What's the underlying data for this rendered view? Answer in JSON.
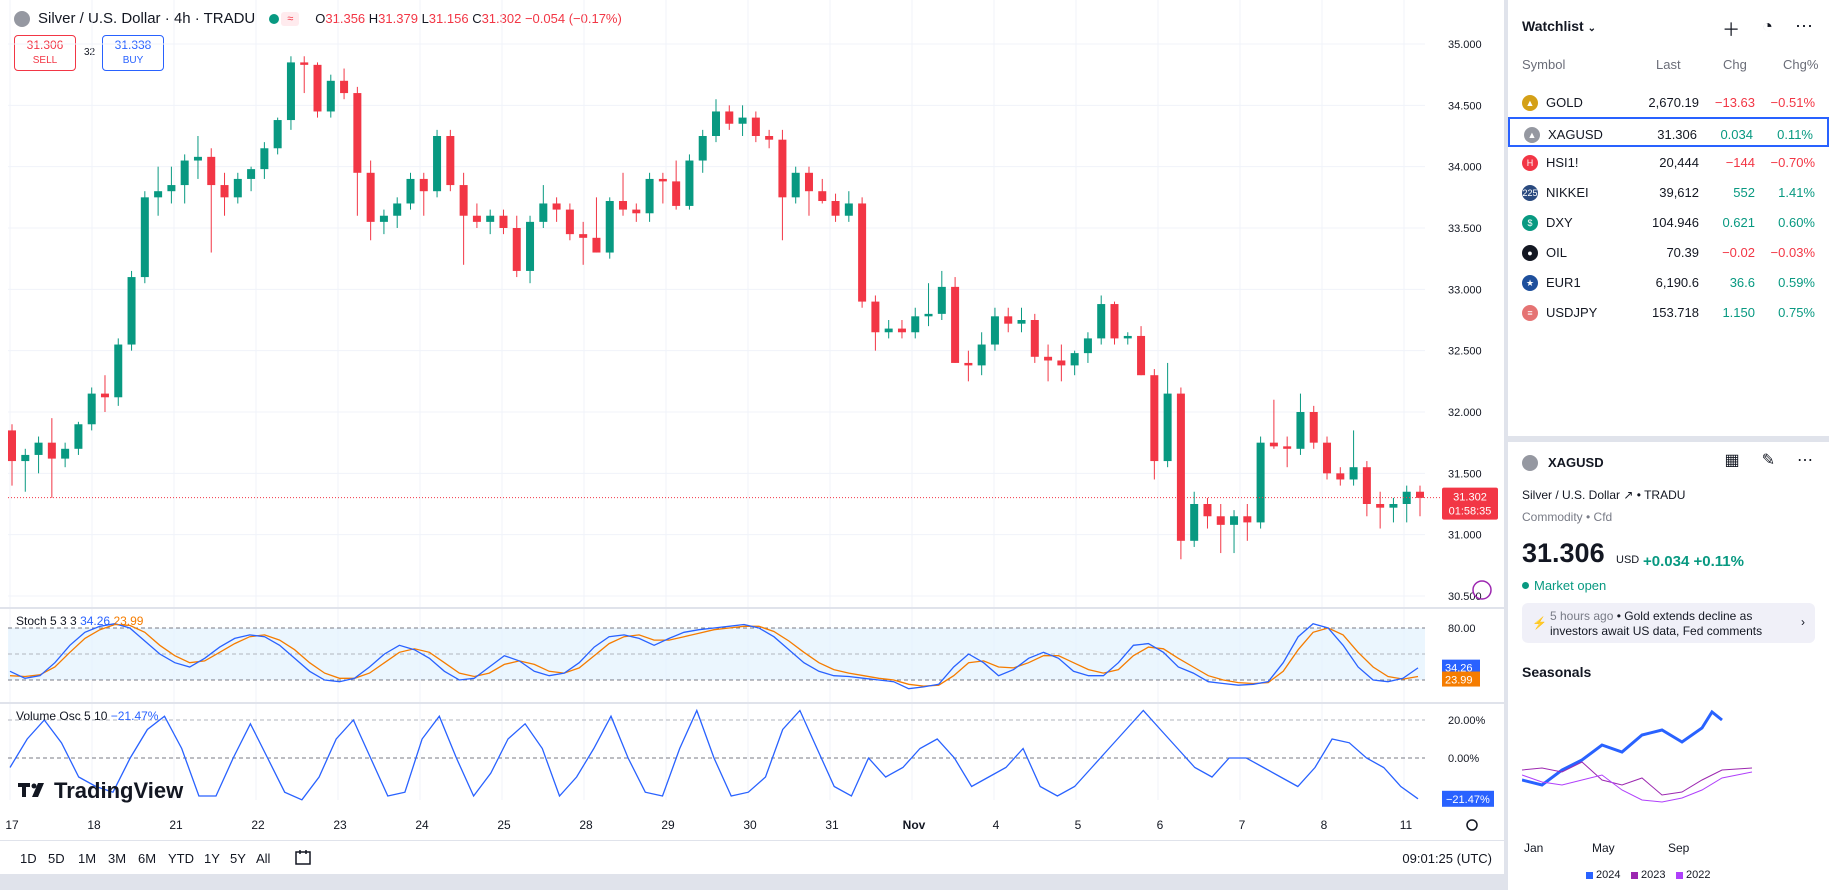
{
  "header": {
    "title": "Silver / U.S. Dollar · 4h · TRADU",
    "ohlc": {
      "o_label": "O",
      "o": "31.356",
      "h_label": "H",
      "h": "31.379",
      "l_label": "L",
      "l": "31.156",
      "c_label": "C",
      "c": "31.302",
      "chg": "−0.054 (−0.17%)"
    },
    "approx_glyph": "≈"
  },
  "trade": {
    "sell_price": "31.306",
    "sell_label": "SELL",
    "spread": "32",
    "buy_price": "31.338",
    "buy_label": "BUY"
  },
  "price_axis": [
    "35.000",
    "34.500",
    "34.000",
    "33.500",
    "33.000",
    "32.500",
    "32.000",
    "31.500",
    "31.000",
    "30.500"
  ],
  "last_price_tag": {
    "price": "31.302",
    "countdown": "01:58:35",
    "color": "#f23645"
  },
  "stoch": {
    "label": "Stoch",
    "params": "5 3 3",
    "k": "34.26",
    "d": "23.99",
    "levels": [
      "80.00",
      "20.00"
    ],
    "k_tag": "34.26",
    "d_tag": "23.99"
  },
  "volosc": {
    "label": "Volume Osc",
    "params": "5 10",
    "value": "−21.47%",
    "levels": [
      "20.00%",
      "0.00%"
    ],
    "tag": "−21.47%"
  },
  "x_axis": [
    "17",
    "18",
    "21",
    "22",
    "23",
    "24",
    "25",
    "28",
    "29",
    "30",
    "31",
    "Nov",
    "4",
    "5",
    "6",
    "7",
    "8",
    "11"
  ],
  "logo": "TradingView",
  "ranges": [
    "1D",
    "5D",
    "1M",
    "3M",
    "6M",
    "YTD",
    "1Y",
    "5Y",
    "All"
  ],
  "clock": "09:01:25 (UTC)",
  "watchlist": {
    "title": "Watchlist",
    "columns": [
      "Symbol",
      "Last",
      "Chg",
      "Chg%"
    ],
    "rows": [
      {
        "symbol": "GOLD",
        "last": "2,670.19",
        "chg": "−13.63",
        "chgp": "−0.51%",
        "dir": "neg",
        "icon_color": "#d4a017",
        "icon": "▲"
      },
      {
        "symbol": "XAGUSD",
        "last": "31.306",
        "chg": "0.034",
        "chgp": "0.11%",
        "dir": "pos",
        "icon_color": "#9598a1",
        "icon": "▲",
        "selected": true
      },
      {
        "symbol": "HSI1!",
        "last": "20,444",
        "chg": "−144",
        "chgp": "−0.70%",
        "dir": "neg",
        "icon_color": "#f23645",
        "icon": "H"
      },
      {
        "symbol": "NIKKEI",
        "last": "39,612",
        "chg": "552",
        "chgp": "1.41%",
        "dir": "pos",
        "icon_color": "#2a4a7f",
        "icon": "225"
      },
      {
        "symbol": "DXY",
        "last": "104.946",
        "chg": "0.621",
        "chgp": "0.60%",
        "dir": "pos",
        "icon_color": "#089981",
        "icon": "$"
      },
      {
        "symbol": "OIL",
        "last": "70.39",
        "chg": "−0.02",
        "chgp": "−0.03%",
        "dir": "neg",
        "icon_color": "#131722",
        "icon": "●"
      },
      {
        "symbol": "EUR1",
        "last": "6,190.6",
        "chg": "36.6",
        "chgp": "0.59%",
        "dir": "pos",
        "icon_color": "#1e4f9c",
        "icon": "★"
      },
      {
        "symbol": "USDJPY",
        "last": "153.718",
        "chg": "1.150",
        "chgp": "0.75%",
        "dir": "pos",
        "icon_color": "#e57373",
        "icon": "≡"
      }
    ]
  },
  "details": {
    "symbol": "XAGUSD",
    "description": "Silver / U.S. Dollar",
    "exchange": "TRADU",
    "sub": "Commodity • Cfd",
    "price": "31.306",
    "currency": "USD",
    "change": "+0.034  +0.11%",
    "market_status": "Market open",
    "news_time": "5 hours ago",
    "news_text": "Gold extends decline as investors await US data, Fed comments"
  },
  "seasonals": {
    "title": "Seasonals",
    "months": [
      "Jan",
      "May",
      "Sep"
    ],
    "legend": [
      {
        "year": "2024",
        "color": "#2962ff"
      },
      {
        "year": "2023",
        "color": "#9c27b0"
      },
      {
        "year": "2022",
        "color": "#b040fb"
      }
    ]
  },
  "chart_data": {
    "type": "candlestick",
    "interval": "4h",
    "ylim": [
      30.5,
      35.0
    ],
    "candles": [
      [
        31.85,
        31.9,
        31.4,
        31.6
      ],
      [
        31.6,
        31.7,
        31.35,
        31.65
      ],
      [
        31.65,
        31.8,
        31.5,
        31.75
      ],
      [
        31.75,
        31.95,
        31.3,
        31.62
      ],
      [
        31.62,
        31.75,
        31.55,
        31.7
      ],
      [
        31.7,
        31.92,
        31.65,
        31.9
      ],
      [
        31.9,
        32.2,
        31.85,
        32.15
      ],
      [
        32.15,
        32.3,
        32.0,
        32.12
      ],
      [
        32.12,
        32.6,
        32.05,
        32.55
      ],
      [
        32.55,
        33.15,
        32.5,
        33.1
      ],
      [
        33.1,
        33.8,
        33.05,
        33.75
      ],
      [
        33.75,
        34.0,
        33.6,
        33.8
      ],
      [
        33.8,
        34.0,
        33.7,
        33.85
      ],
      [
        33.85,
        34.1,
        33.7,
        34.05
      ],
      [
        34.05,
        34.25,
        33.9,
        34.08
      ],
      [
        34.08,
        34.15,
        33.3,
        33.85
      ],
      [
        33.85,
        33.95,
        33.6,
        33.75
      ],
      [
        33.75,
        33.95,
        33.7,
        33.9
      ],
      [
        33.9,
        34.0,
        33.8,
        33.98
      ],
      [
        33.98,
        34.2,
        33.9,
        34.15
      ],
      [
        34.15,
        34.4,
        34.1,
        34.38
      ],
      [
        34.38,
        34.9,
        34.3,
        34.85
      ],
      [
        34.85,
        34.9,
        34.6,
        34.83
      ],
      [
        34.83,
        34.85,
        34.4,
        34.45
      ],
      [
        34.45,
        34.75,
        34.4,
        34.7
      ],
      [
        34.7,
        34.8,
        34.55,
        34.6
      ],
      [
        34.6,
        34.65,
        33.6,
        33.95
      ],
      [
        33.95,
        34.05,
        33.4,
        33.55
      ],
      [
        33.55,
        33.65,
        33.45,
        33.6
      ],
      [
        33.6,
        33.75,
        33.5,
        33.7
      ],
      [
        33.7,
        33.95,
        33.65,
        33.9
      ],
      [
        33.9,
        33.95,
        33.6,
        33.8
      ],
      [
        33.8,
        34.3,
        33.75,
        34.25
      ],
      [
        34.25,
        34.3,
        33.8,
        33.85
      ],
      [
        33.85,
        33.95,
        33.2,
        33.6
      ],
      [
        33.6,
        33.7,
        33.5,
        33.55
      ],
      [
        33.55,
        33.65,
        33.45,
        33.6
      ],
      [
        33.6,
        33.65,
        33.45,
        33.5
      ],
      [
        33.5,
        33.6,
        33.1,
        33.15
      ],
      [
        33.15,
        33.6,
        33.05,
        33.55
      ],
      [
        33.55,
        33.85,
        33.5,
        33.7
      ],
      [
        33.7,
        33.75,
        33.55,
        33.65
      ],
      [
        33.65,
        33.7,
        33.4,
        33.45
      ],
      [
        33.45,
        33.55,
        33.2,
        33.42
      ],
      [
        33.42,
        33.75,
        33.3,
        33.3
      ],
      [
        33.3,
        33.75,
        33.25,
        33.72
      ],
      [
        33.72,
        33.95,
        33.6,
        33.65
      ],
      [
        33.65,
        33.7,
        33.55,
        33.62
      ],
      [
        33.62,
        33.95,
        33.55,
        33.9
      ],
      [
        33.9,
        33.95,
        33.7,
        33.88
      ],
      [
        33.88,
        34.05,
        33.65,
        33.68
      ],
      [
        33.68,
        34.1,
        33.65,
        34.05
      ],
      [
        34.05,
        34.3,
        33.95,
        34.25
      ],
      [
        34.25,
        34.55,
        34.2,
        34.45
      ],
      [
        34.45,
        34.5,
        34.3,
        34.35
      ],
      [
        34.35,
        34.5,
        34.25,
        34.4
      ],
      [
        34.4,
        34.45,
        34.2,
        34.25
      ],
      [
        34.25,
        34.3,
        34.15,
        34.22
      ],
      [
        34.22,
        34.3,
        33.4,
        33.75
      ],
      [
        33.75,
        34.0,
        33.7,
        33.95
      ],
      [
        33.95,
        34.0,
        33.6,
        33.8
      ],
      [
        33.8,
        33.9,
        33.7,
        33.72
      ],
      [
        33.72,
        33.78,
        33.55,
        33.6
      ],
      [
        33.6,
        33.8,
        33.55,
        33.7
      ],
      [
        33.7,
        33.75,
        32.85,
        32.9
      ],
      [
        32.9,
        32.95,
        32.5,
        32.65
      ],
      [
        32.65,
        32.75,
        32.6,
        32.68
      ],
      [
        32.68,
        32.75,
        32.6,
        32.65
      ],
      [
        32.65,
        32.85,
        32.6,
        32.78
      ],
      [
        32.78,
        33.05,
        32.7,
        32.8
      ],
      [
        32.8,
        33.15,
        32.75,
        33.02
      ],
      [
        33.02,
        33.1,
        32.4,
        32.4
      ],
      [
        32.4,
        32.5,
        32.25,
        32.38
      ],
      [
        32.38,
        32.65,
        32.3,
        32.55
      ],
      [
        32.55,
        32.85,
        32.5,
        32.78
      ],
      [
        32.78,
        32.85,
        32.65,
        32.72
      ],
      [
        32.72,
        32.85,
        32.65,
        32.75
      ],
      [
        32.75,
        32.8,
        32.4,
        32.45
      ],
      [
        32.45,
        32.55,
        32.25,
        32.42
      ],
      [
        32.42,
        32.55,
        32.25,
        32.38
      ],
      [
        32.38,
        32.5,
        32.3,
        32.48
      ],
      [
        32.48,
        32.65,
        32.4,
        32.6
      ],
      [
        32.6,
        32.95,
        32.55,
        32.88
      ],
      [
        32.88,
        32.9,
        32.55,
        32.6
      ],
      [
        32.6,
        32.65,
        32.55,
        32.62
      ],
      [
        32.62,
        32.7,
        32.3,
        32.3
      ],
      [
        32.3,
        32.35,
        31.45,
        31.6
      ],
      [
        31.6,
        32.4,
        31.55,
        32.15
      ],
      [
        32.15,
        32.2,
        30.8,
        30.95
      ],
      [
        30.95,
        31.35,
        30.9,
        31.25
      ],
      [
        31.25,
        31.3,
        31.05,
        31.15
      ],
      [
        31.15,
        31.25,
        30.85,
        31.08
      ],
      [
        31.08,
        31.2,
        30.85,
        31.15
      ],
      [
        31.15,
        31.25,
        30.95,
        31.1
      ],
      [
        31.1,
        31.8,
        31.05,
        31.75
      ],
      [
        31.75,
        32.1,
        31.7,
        31.72
      ],
      [
        31.72,
        31.8,
        31.55,
        31.7
      ],
      [
        31.7,
        32.15,
        31.65,
        32.0
      ],
      [
        32.0,
        32.05,
        31.7,
        31.75
      ],
      [
        31.75,
        31.8,
        31.45,
        31.5
      ],
      [
        31.5,
        31.55,
        31.4,
        31.45
      ],
      [
        31.45,
        31.85,
        31.4,
        31.55
      ],
      [
        31.55,
        31.6,
        31.15,
        31.25
      ],
      [
        31.25,
        31.35,
        31.05,
        31.22
      ],
      [
        31.22,
        31.3,
        31.1,
        31.25
      ],
      [
        31.25,
        31.4,
        31.1,
        31.35
      ],
      [
        31.35,
        31.4,
        31.15,
        31.3
      ]
    ],
    "stoch_k": [
      30,
      22,
      25,
      40,
      60,
      75,
      82,
      85,
      80,
      65,
      50,
      40,
      35,
      45,
      58,
      68,
      72,
      70,
      60,
      45,
      30,
      20,
      18,
      22,
      35,
      50,
      60,
      55,
      45,
      30,
      20,
      22,
      35,
      48,
      42,
      30,
      25,
      28,
      40,
      58,
      70,
      72,
      68,
      60,
      68,
      75,
      78,
      80,
      82,
      84,
      80,
      70,
      55,
      40,
      30,
      25,
      24,
      22,
      20,
      18,
      10,
      12,
      15,
      35,
      50,
      40,
      25,
      32,
      45,
      52,
      45,
      30,
      25,
      25,
      40,
      60,
      62,
      52,
      35,
      28,
      18,
      16,
      14,
      15,
      18,
      40,
      70,
      85,
      80,
      60,
      35,
      20,
      18,
      22,
      34
    ],
    "stoch_d": [
      25,
      24,
      26,
      35,
      52,
      68,
      78,
      84,
      83,
      75,
      60,
      48,
      40,
      42,
      52,
      62,
      70,
      72,
      66,
      55,
      40,
      28,
      22,
      22,
      28,
      40,
      52,
      56,
      52,
      40,
      28,
      24,
      28,
      38,
      42,
      38,
      30,
      28,
      34,
      48,
      62,
      70,
      72,
      66,
      66,
      70,
      74,
      78,
      80,
      82,
      82,
      76,
      65,
      52,
      40,
      32,
      28,
      25,
      22,
      20,
      15,
      13,
      14,
      25,
      40,
      42,
      35,
      34,
      40,
      48,
      48,
      40,
      32,
      28,
      32,
      48,
      58,
      56,
      45,
      35,
      25,
      20,
      17,
      16,
      17,
      30,
      55,
      75,
      80,
      72,
      52,
      35,
      24,
      21,
      24
    ],
    "vol_osc": [
      -5,
      10,
      20,
      8,
      -10,
      -15,
      -18,
      0,
      15,
      22,
      5,
      -20,
      -20,
      0,
      18,
      0,
      -18,
      -22,
      -10,
      10,
      20,
      0,
      -20,
      -18,
      10,
      22,
      0,
      -20,
      -8,
      10,
      18,
      5,
      -20,
      -10,
      5,
      22,
      0,
      -18,
      -20,
      5,
      25,
      0,
      -20,
      -18,
      -10,
      15,
      25,
      5,
      -15,
      -20,
      0,
      -10,
      -5,
      5,
      10,
      0,
      -15,
      -10,
      -5,
      5,
      -15,
      -20,
      -15,
      -5,
      5,
      15,
      25,
      15,
      5,
      -5,
      -10,
      0,
      0,
      -5,
      -10,
      -15,
      -5,
      10,
      8,
      0,
      -5,
      -15,
      -21.47
    ]
  }
}
